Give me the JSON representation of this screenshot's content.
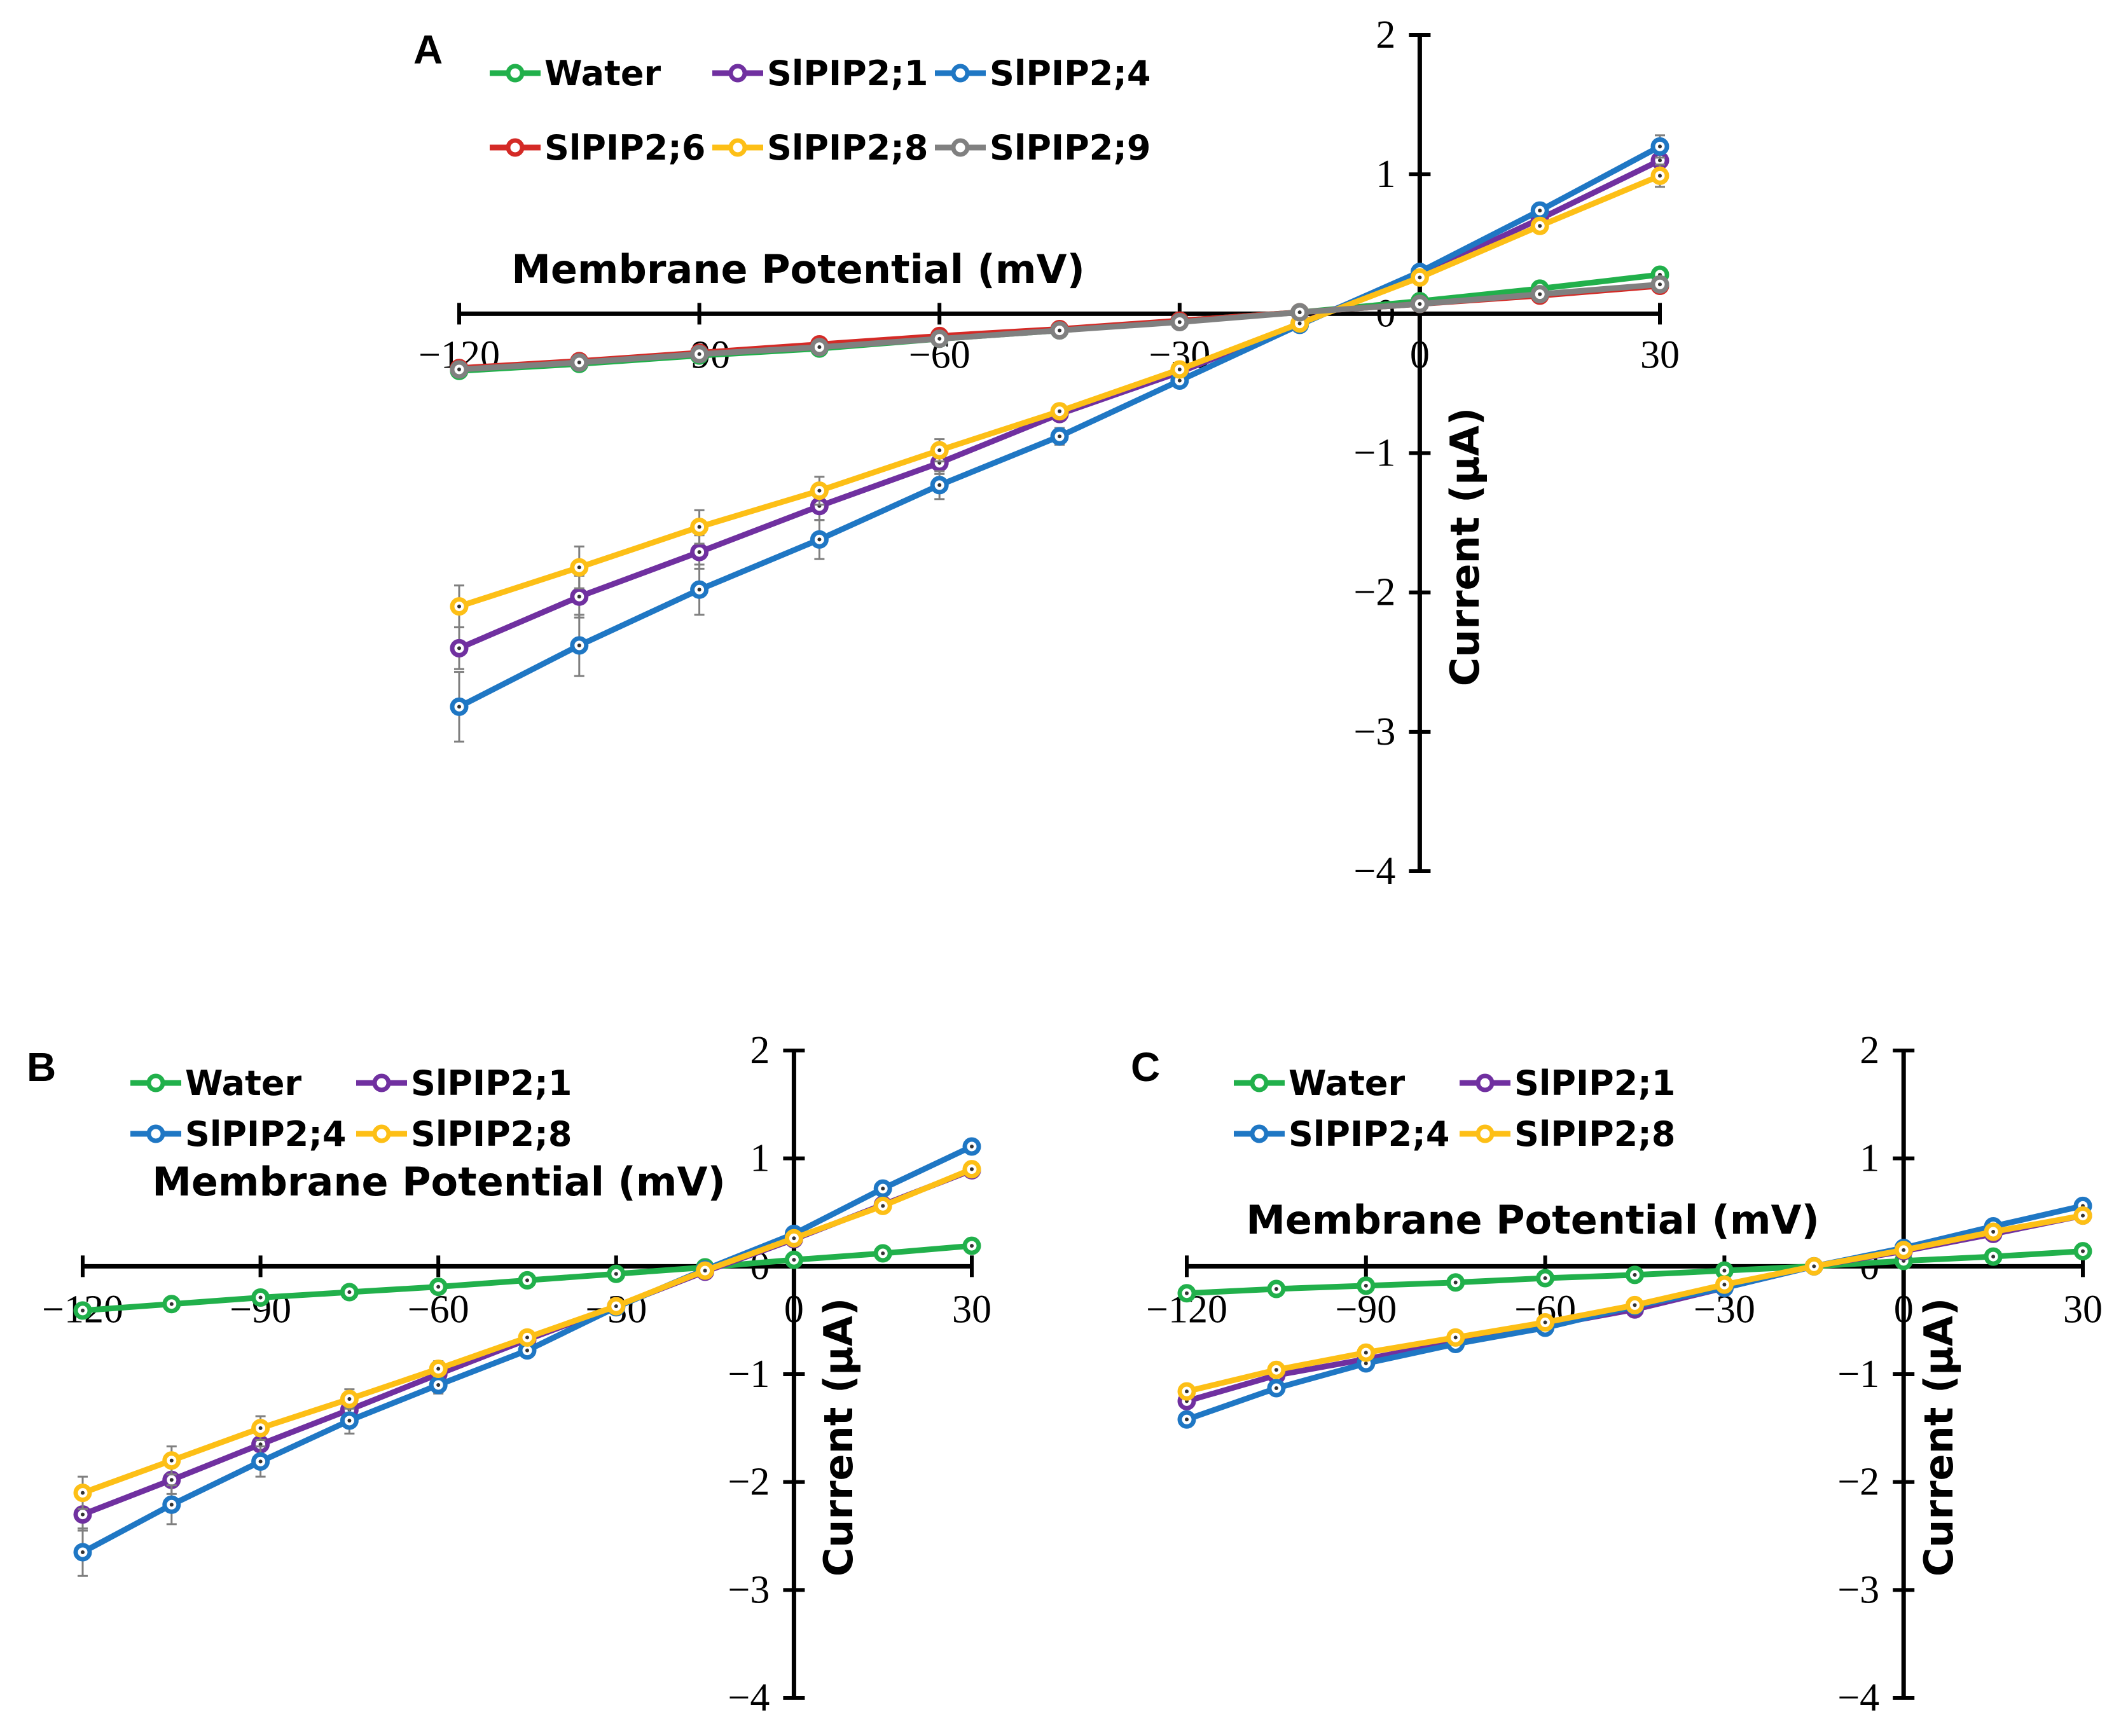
{
  "chart_data": [
    {
      "type": "line",
      "panel": "A",
      "xlabel": "Membrane Potential (mV)",
      "ylabel": "Current (µA)",
      "xlim": [
        -120,
        30
      ],
      "ylim": [
        -4,
        2
      ],
      "x_ticks": [
        "−120",
        "−90",
        "−60",
        "−30",
        "0",
        "30"
      ],
      "y_ticks": [
        "2",
        "1",
        "0",
        "−1",
        "−2",
        "−3",
        "−4"
      ],
      "legend_position": "top-left",
      "x": [
        -120,
        -105,
        -90,
        -75,
        -60,
        -45,
        -30,
        -15,
        0,
        15,
        30
      ],
      "series": [
        {
          "name": "Water",
          "color": "#21b04b",
          "values": [
            -0.41,
            -0.36,
            -0.3,
            -0.25,
            -0.18,
            -0.12,
            -0.05,
            0.01,
            0.09,
            0.18,
            0.28
          ]
        },
        {
          "name": "SlPIP2;1",
          "color": "#7030a0",
          "values": [
            -2.4,
            -2.03,
            -1.71,
            -1.38,
            -1.07,
            -0.72,
            -0.42,
            -0.07,
            0.28,
            0.68,
            1.1
          ],
          "err": [
            0.15,
            0.15,
            0.12,
            0.1,
            0.08,
            0.05,
            0.03,
            0.02,
            0.03,
            0.05,
            0.08
          ]
        },
        {
          "name": "SlPIP2;4",
          "color": "#1f77c4",
          "values": [
            -2.82,
            -2.38,
            -1.98,
            -1.62,
            -1.23,
            -0.88,
            -0.48,
            -0.08,
            0.3,
            0.74,
            1.2
          ],
          "err": [
            0.25,
            0.22,
            0.18,
            0.14,
            0.1,
            0.06,
            0.04,
            0.02,
            0.03,
            0.05,
            0.08
          ]
        },
        {
          "name": "SlPIP2;6",
          "color": "#d42a26",
          "values": [
            -0.39,
            -0.34,
            -0.28,
            -0.22,
            -0.16,
            -0.11,
            -0.05,
            0.01,
            0.07,
            0.13,
            0.2
          ]
        },
        {
          "name": "SlPIP2;8",
          "color": "#fdbf16",
          "values": [
            -2.1,
            -1.82,
            -1.53,
            -1.27,
            -0.98,
            -0.7,
            -0.4,
            -0.07,
            0.26,
            0.63,
            0.99
          ],
          "err": [
            0.15,
            0.15,
            0.12,
            0.1,
            0.08,
            0.05,
            0.03,
            0.02,
            0.03,
            0.05,
            0.08
          ]
        },
        {
          "name": "SlPIP2;9",
          "color": "#808080",
          "values": [
            -0.4,
            -0.35,
            -0.29,
            -0.24,
            -0.18,
            -0.12,
            -0.06,
            0.01,
            0.07,
            0.14,
            0.21
          ]
        }
      ]
    },
    {
      "type": "line",
      "panel": "B",
      "xlabel": "Membrane Potential (mV)",
      "ylabel": "Current (µA)",
      "xlim": [
        -120,
        30
      ],
      "ylim": [
        -4,
        2
      ],
      "x_ticks": [
        "−120",
        "−90",
        "−60",
        "−30",
        "0",
        "30"
      ],
      "y_ticks": [
        "2",
        "1",
        "0",
        "−1",
        "−2",
        "−3",
        "−4"
      ],
      "legend_position": "top-left",
      "x": [
        -120,
        -105,
        -90,
        -75,
        -60,
        -45,
        -30,
        -15,
        0,
        15,
        30
      ],
      "series": [
        {
          "name": "Water",
          "color": "#21b04b",
          "values": [
            -0.41,
            -0.35,
            -0.29,
            -0.24,
            -0.19,
            -0.13,
            -0.07,
            -0.01,
            0.06,
            0.12,
            0.19
          ]
        },
        {
          "name": "SlPIP2;1",
          "color": "#7030a0",
          "values": [
            -2.3,
            -1.98,
            -1.65,
            -1.33,
            -1.0,
            -0.68,
            -0.37,
            -0.05,
            0.25,
            0.57,
            0.89
          ],
          "err": [
            0.15,
            0.13,
            0.11,
            0.09,
            0.07,
            0.05,
            0.03,
            0.02,
            0.03,
            0.04,
            0.05
          ]
        },
        {
          "name": "SlPIP2;4",
          "color": "#1f77c4",
          "values": [
            -2.65,
            -2.21,
            -1.81,
            -1.43,
            -1.1,
            -0.78,
            -0.38,
            -0.03,
            0.3,
            0.72,
            1.11
          ],
          "err": [
            0.22,
            0.18,
            0.14,
            0.12,
            0.08,
            0.05,
            0.03,
            0.02,
            0.03,
            0.05,
            0.06
          ]
        },
        {
          "name": "SlPIP2;8",
          "color": "#fdbf16",
          "values": [
            -2.1,
            -1.8,
            -1.5,
            -1.23,
            -0.95,
            -0.66,
            -0.37,
            -0.04,
            0.26,
            0.56,
            0.9
          ],
          "err": [
            0.15,
            0.13,
            0.11,
            0.09,
            0.07,
            0.05,
            0.03,
            0.02,
            0.03,
            0.04,
            0.05
          ]
        }
      ]
    },
    {
      "type": "line",
      "panel": "C",
      "xlabel": "Membrane Potential (mV)",
      "ylabel": "Current (µA)",
      "xlim": [
        -120,
        30
      ],
      "ylim": [
        -4,
        2
      ],
      "x_ticks": [
        "−120",
        "−90",
        "−60",
        "−30",
        "0",
        "30"
      ],
      "y_ticks": [
        "2",
        "1",
        "0",
        "−1",
        "−2",
        "−3",
        "−4"
      ],
      "legend_position": "top-left",
      "x": [
        -120,
        -105,
        -90,
        -75,
        -60,
        -45,
        -30,
        -15,
        0,
        15,
        30
      ],
      "series": [
        {
          "name": "Water",
          "color": "#21b04b",
          "values": [
            -0.25,
            -0.21,
            -0.18,
            -0.15,
            -0.11,
            -0.08,
            -0.04,
            0.0,
            0.05,
            0.09,
            0.14
          ]
        },
        {
          "name": "SlPIP2;1",
          "color": "#7030a0",
          "values": [
            -1.25,
            -1.01,
            -0.86,
            -0.7,
            -0.55,
            -0.4,
            -0.2,
            0.0,
            0.14,
            0.3,
            0.47
          ]
        },
        {
          "name": "SlPIP2;4",
          "color": "#1f77c4",
          "values": [
            -1.42,
            -1.13,
            -0.9,
            -0.72,
            -0.57,
            -0.37,
            -0.2,
            0.0,
            0.17,
            0.37,
            0.56
          ]
        },
        {
          "name": "SlPIP2;8",
          "color": "#fdbf16",
          "values": [
            -1.16,
            -0.96,
            -0.8,
            -0.66,
            -0.52,
            -0.36,
            -0.17,
            0.0,
            0.15,
            0.32,
            0.47
          ]
        }
      ]
    }
  ]
}
